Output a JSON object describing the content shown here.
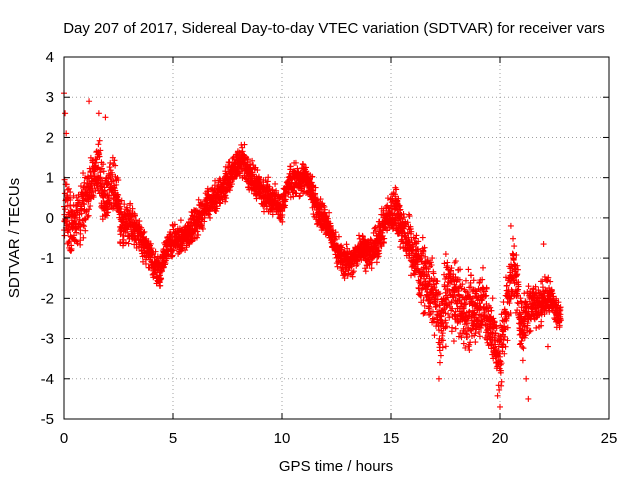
{
  "chart_data": {
    "type": "scatter",
    "title": "Day 207 of 2017, Sidereal Day-to-day VTEC variation (SDTVAR) for receiver vars",
    "xlabel": "GPS time / hours",
    "ylabel": "SDTVAR / TECUs",
    "xlim": [
      0,
      25
    ],
    "ylim": [
      -5,
      4
    ],
    "xticks": [
      "0",
      "5",
      "10",
      "15",
      "20",
      "25"
    ],
    "yticks": [
      "-5",
      "-4",
      "-3",
      "-2",
      "-1",
      "0",
      "1",
      "2",
      "3",
      "4"
    ],
    "grid": true,
    "marker": "+",
    "color": "#ff0000",
    "series": [
      {
        "name": "vars",
        "trend": [
          [
            0.0,
            0.4
          ],
          [
            0.2,
            0.0
          ],
          [
            0.5,
            -0.3
          ],
          [
            0.8,
            0.1
          ],
          [
            1.0,
            0.5
          ],
          [
            1.3,
            0.9
          ],
          [
            1.6,
            1.3
          ],
          [
            1.8,
            0.6
          ],
          [
            2.0,
            0.5
          ],
          [
            2.2,
            1.0
          ],
          [
            2.4,
            0.6
          ],
          [
            2.6,
            -0.2
          ],
          [
            3.0,
            0.0
          ],
          [
            3.3,
            -0.3
          ],
          [
            3.7,
            -0.7
          ],
          [
            4.1,
            -1.1
          ],
          [
            4.4,
            -1.4
          ],
          [
            4.7,
            -0.7
          ],
          [
            5.0,
            -0.6
          ],
          [
            5.5,
            -0.5
          ],
          [
            6.0,
            -0.2
          ],
          [
            6.5,
            0.3
          ],
          [
            7.0,
            0.5
          ],
          [
            7.5,
            0.9
          ],
          [
            7.9,
            1.3
          ],
          [
            8.2,
            1.4
          ],
          [
            8.6,
            1.0
          ],
          [
            9.0,
            0.7
          ],
          [
            9.5,
            0.5
          ],
          [
            10.0,
            0.2
          ],
          [
            10.3,
            0.9
          ],
          [
            10.7,
            0.9
          ],
          [
            11.0,
            1.0
          ],
          [
            11.3,
            0.8
          ],
          [
            11.6,
            0.2
          ],
          [
            12.0,
            -0.1
          ],
          [
            12.4,
            -0.6
          ],
          [
            12.8,
            -1.1
          ],
          [
            13.2,
            -1.1
          ],
          [
            13.6,
            -0.7
          ],
          [
            14.0,
            -0.9
          ],
          [
            14.4,
            -0.6
          ],
          [
            14.8,
            0.0
          ],
          [
            15.2,
            0.2
          ],
          [
            15.6,
            -0.4
          ],
          [
            16.0,
            -0.8
          ],
          [
            16.5,
            -1.5
          ],
          [
            17.0,
            -2.0
          ],
          [
            17.3,
            -2.8
          ],
          [
            17.6,
            -1.6
          ],
          [
            18.0,
            -2.0
          ],
          [
            18.4,
            -2.4
          ],
          [
            18.8,
            -2.3
          ],
          [
            19.2,
            -2.1
          ],
          [
            19.6,
            -2.8
          ],
          [
            20.0,
            -3.6
          ],
          [
            20.3,
            -2.2
          ],
          [
            20.6,
            -1.2
          ],
          [
            20.8,
            -1.8
          ],
          [
            21.0,
            -2.8
          ],
          [
            21.4,
            -2.1
          ],
          [
            21.8,
            -2.2
          ],
          [
            22.2,
            -1.9
          ],
          [
            22.5,
            -2.2
          ],
          [
            22.8,
            -2.5
          ]
        ],
        "spread": [
          [
            0.0,
            0.9
          ],
          [
            2.0,
            0.7
          ],
          [
            4.0,
            0.4
          ],
          [
            6.0,
            0.4
          ],
          [
            9.0,
            0.4
          ],
          [
            12.0,
            0.4
          ],
          [
            14.0,
            0.4
          ],
          [
            15.5,
            0.6
          ],
          [
            16.5,
            0.8
          ],
          [
            17.5,
            1.0
          ],
          [
            19.0,
            0.9
          ],
          [
            20.0,
            1.0
          ],
          [
            21.0,
            0.7
          ],
          [
            22.0,
            0.5
          ],
          [
            22.8,
            0.3
          ]
        ],
        "outliers": [
          [
            0.0,
            3.1
          ],
          [
            0.05,
            2.6
          ],
          [
            0.1,
            2.1
          ],
          [
            1.15,
            2.9
          ],
          [
            1.6,
            2.6
          ],
          [
            1.9,
            2.5
          ],
          [
            15.2,
            0.75
          ],
          [
            17.2,
            -4.0
          ],
          [
            20.0,
            -4.7
          ],
          [
            21.2,
            -4.0
          ],
          [
            21.3,
            -4.5
          ],
          [
            22.0,
            -0.65
          ],
          [
            22.2,
            -3.2
          ],
          [
            20.5,
            -0.2
          ]
        ],
        "x_step": 0.0083
      }
    ]
  }
}
